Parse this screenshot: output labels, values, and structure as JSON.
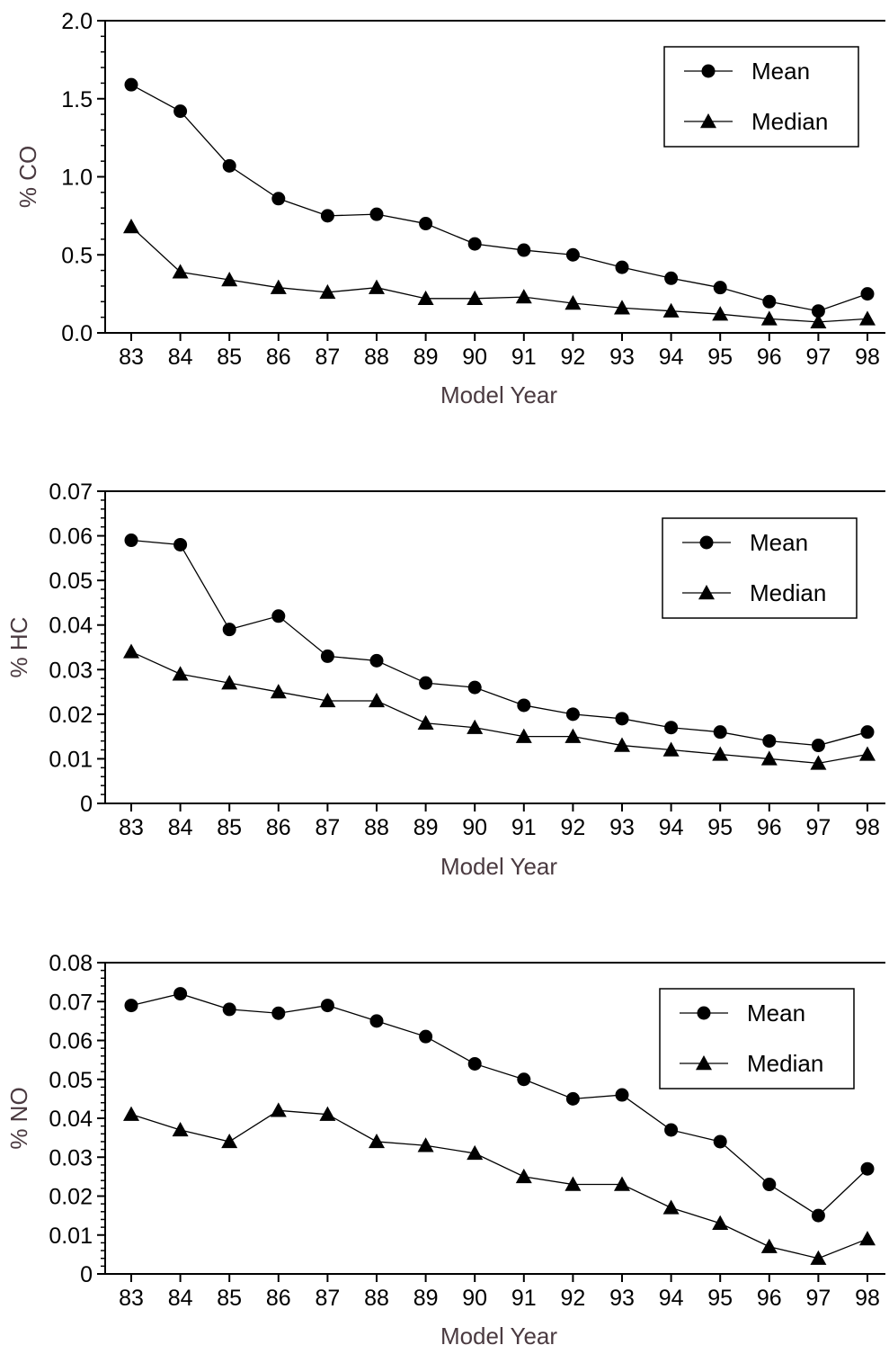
{
  "chart_data": [
    {
      "type": "line",
      "xlabel": "Model Year",
      "ylabel": "% CO",
      "categories": [
        "83",
        "84",
        "85",
        "86",
        "87",
        "88",
        "89",
        "90",
        "91",
        "92",
        "93",
        "94",
        "95",
        "96",
        "97",
        "98"
      ],
      "ylim": [
        0,
        2.0
      ],
      "yticks": [
        "0.0",
        "0.5",
        "1.0",
        "1.5",
        "2.0"
      ],
      "grid": false,
      "legend_position": "top-right",
      "series": [
        {
          "name": "Mean",
          "marker": "circle",
          "values": [
            1.59,
            1.42,
            1.07,
            0.86,
            0.75,
            0.76,
            0.7,
            0.57,
            0.53,
            0.5,
            0.42,
            0.35,
            0.29,
            0.2,
            0.14,
            0.25
          ]
        },
        {
          "name": "Median",
          "marker": "triangle",
          "values": [
            0.68,
            0.39,
            0.34,
            0.29,
            0.26,
            0.29,
            0.22,
            0.22,
            0.23,
            0.19,
            0.16,
            0.14,
            0.12,
            0.09,
            0.07,
            0.09
          ]
        }
      ]
    },
    {
      "type": "line",
      "xlabel": "Model Year",
      "ylabel": "% HC",
      "categories": [
        "83",
        "84",
        "85",
        "86",
        "87",
        "88",
        "89",
        "90",
        "91",
        "92",
        "93",
        "94",
        "95",
        "96",
        "97",
        "98"
      ],
      "ylim": [
        0,
        0.07
      ],
      "yticks": [
        "0",
        "0.01",
        "0.02",
        "0.03",
        "0.04",
        "0.05",
        "0.06",
        "0.07"
      ],
      "grid": false,
      "legend_position": "top-right",
      "series": [
        {
          "name": "Mean",
          "marker": "circle",
          "values": [
            0.059,
            0.058,
            0.039,
            0.042,
            0.033,
            0.032,
            0.027,
            0.026,
            0.022,
            0.02,
            0.019,
            0.017,
            0.016,
            0.014,
            0.013,
            0.016
          ]
        },
        {
          "name": "Median",
          "marker": "triangle",
          "values": [
            0.034,
            0.029,
            0.027,
            0.025,
            0.023,
            0.023,
            0.018,
            0.017,
            0.015,
            0.015,
            0.013,
            0.012,
            0.011,
            0.01,
            0.009,
            0.011
          ]
        }
      ]
    },
    {
      "type": "line",
      "xlabel": "Model Year",
      "ylabel": "% NO",
      "categories": [
        "83",
        "84",
        "85",
        "86",
        "87",
        "88",
        "89",
        "90",
        "91",
        "92",
        "93",
        "94",
        "95",
        "96",
        "97",
        "98"
      ],
      "ylim": [
        0,
        0.08
      ],
      "yticks": [
        "0",
        "0.01",
        "0.02",
        "0.03",
        "0.04",
        "0.05",
        "0.06",
        "0.07",
        "0.08"
      ],
      "grid": false,
      "legend_position": "top-right",
      "series": [
        {
          "name": "Mean",
          "marker": "circle",
          "values": [
            0.069,
            0.072,
            0.068,
            0.067,
            0.069,
            0.065,
            0.061,
            0.054,
            0.05,
            0.045,
            0.046,
            0.037,
            0.034,
            0.023,
            0.015,
            0.027
          ]
        },
        {
          "name": "Median",
          "marker": "triangle",
          "values": [
            0.041,
            0.037,
            0.034,
            0.042,
            0.041,
            0.034,
            0.033,
            0.031,
            0.025,
            0.023,
            0.023,
            0.017,
            0.013,
            0.007,
            0.004,
            0.009
          ]
        }
      ]
    }
  ]
}
